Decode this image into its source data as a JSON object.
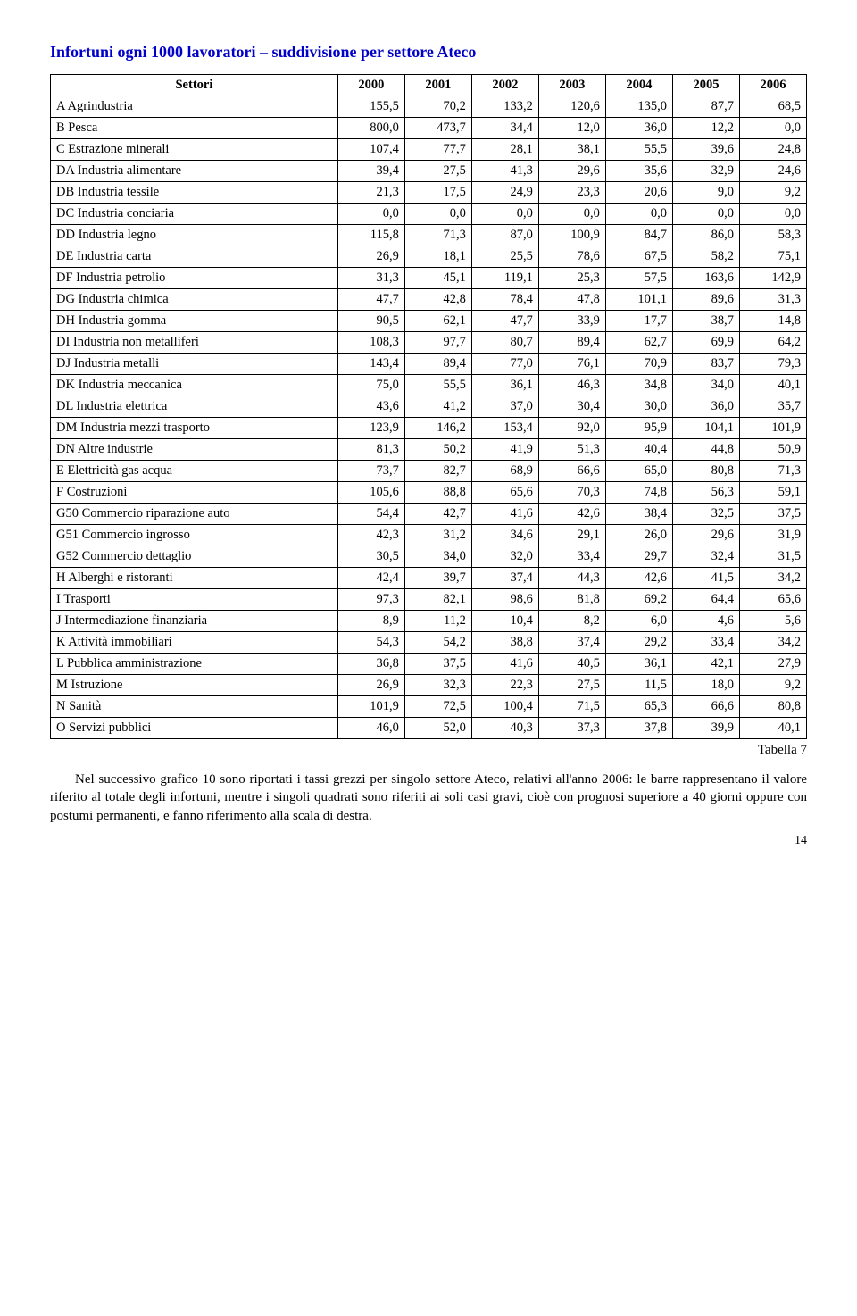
{
  "title": "Infortuni ogni 1000 lavoratori – suddivisione per settore Ateco",
  "title_color": "#0000c8",
  "columns": [
    "Settori",
    "2000",
    "2001",
    "2002",
    "2003",
    "2004",
    "2005",
    "2006"
  ],
  "rows": [
    [
      "A Agrindustria",
      "155,5",
      "70,2",
      "133,2",
      "120,6",
      "135,0",
      "87,7",
      "68,5"
    ],
    [
      "B Pesca",
      "800,0",
      "473,7",
      "34,4",
      "12,0",
      "36,0",
      "12,2",
      "0,0"
    ],
    [
      "C Estrazione minerali",
      "107,4",
      "77,7",
      "28,1",
      "38,1",
      "55,5",
      "39,6",
      "24,8"
    ],
    [
      "DA Industria alimentare",
      "39,4",
      "27,5",
      "41,3",
      "29,6",
      "35,6",
      "32,9",
      "24,6"
    ],
    [
      "DB Industria tessile",
      "21,3",
      "17,5",
      "24,9",
      "23,3",
      "20,6",
      "9,0",
      "9,2"
    ],
    [
      "DC Industria conciaria",
      "0,0",
      "0,0",
      "0,0",
      "0,0",
      "0,0",
      "0,0",
      "0,0"
    ],
    [
      "DD Industria legno",
      "115,8",
      "71,3",
      "87,0",
      "100,9",
      "84,7",
      "86,0",
      "58,3"
    ],
    [
      "DE Industria carta",
      "26,9",
      "18,1",
      "25,5",
      "78,6",
      "67,5",
      "58,2",
      "75,1"
    ],
    [
      "DF Industria petrolio",
      "31,3",
      "45,1",
      "119,1",
      "25,3",
      "57,5",
      "163,6",
      "142,9"
    ],
    [
      "DG Industria chimica",
      "47,7",
      "42,8",
      "78,4",
      "47,8",
      "101,1",
      "89,6",
      "31,3"
    ],
    [
      "DH Industria gomma",
      "90,5",
      "62,1",
      "47,7",
      "33,9",
      "17,7",
      "38,7",
      "14,8"
    ],
    [
      "DI Industria non metalliferi",
      "108,3",
      "97,7",
      "80,7",
      "89,4",
      "62,7",
      "69,9",
      "64,2"
    ],
    [
      "DJ Industria metalli",
      "143,4",
      "89,4",
      "77,0",
      "76,1",
      "70,9",
      "83,7",
      "79,3"
    ],
    [
      "DK Industria meccanica",
      "75,0",
      "55,5",
      "36,1",
      "46,3",
      "34,8",
      "34,0",
      "40,1"
    ],
    [
      "DL Industria elettrica",
      "43,6",
      "41,2",
      "37,0",
      "30,4",
      "30,0",
      "36,0",
      "35,7"
    ],
    [
      "DM Industria mezzi trasporto",
      "123,9",
      "146,2",
      "153,4",
      "92,0",
      "95,9",
      "104,1",
      "101,9"
    ],
    [
      "DN Altre industrie",
      "81,3",
      "50,2",
      "41,9",
      "51,3",
      "40,4",
      "44,8",
      "50,9"
    ],
    [
      "E Elettricità gas acqua",
      "73,7",
      "82,7",
      "68,9",
      "66,6",
      "65,0",
      "80,8",
      "71,3"
    ],
    [
      "F Costruzioni",
      "105,6",
      "88,8",
      "65,6",
      "70,3",
      "74,8",
      "56,3",
      "59,1"
    ],
    [
      "G50 Commercio riparazione auto",
      "54,4",
      "42,7",
      "41,6",
      "42,6",
      "38,4",
      "32,5",
      "37,5"
    ],
    [
      "G51 Commercio ingrosso",
      "42,3",
      "31,2",
      "34,6",
      "29,1",
      "26,0",
      "29,6",
      "31,9"
    ],
    [
      "G52 Commercio dettaglio",
      "30,5",
      "34,0",
      "32,0",
      "33,4",
      "29,7",
      "32,4",
      "31,5"
    ],
    [
      "H Alberghi e ristoranti",
      "42,4",
      "39,7",
      "37,4",
      "44,3",
      "42,6",
      "41,5",
      "34,2"
    ],
    [
      "I Trasporti",
      "97,3",
      "82,1",
      "98,6",
      "81,8",
      "69,2",
      "64,4",
      "65,6"
    ],
    [
      "J Intermediazione finanziaria",
      "8,9",
      "11,2",
      "10,4",
      "8,2",
      "6,0",
      "4,6",
      "5,6"
    ],
    [
      "K Attività immobiliari",
      "54,3",
      "54,2",
      "38,8",
      "37,4",
      "29,2",
      "33,4",
      "34,2"
    ],
    [
      "L Pubblica amministrazione",
      "36,8",
      "37,5",
      "41,6",
      "40,5",
      "36,1",
      "42,1",
      "27,9"
    ],
    [
      "M Istruzione",
      "26,9",
      "32,3",
      "22,3",
      "27,5",
      "11,5",
      "18,0",
      "9,2"
    ],
    [
      "N Sanità",
      "101,9",
      "72,5",
      "100,4",
      "71,5",
      "65,3",
      "66,6",
      "80,8"
    ],
    [
      "O Servizi pubblici",
      "46,0",
      "52,0",
      "40,3",
      "37,3",
      "37,8",
      "39,9",
      "40,1"
    ]
  ],
  "caption": "Tabella 7",
  "paragraph": "Nel successivo grafico 10 sono riportati i tassi grezzi per singolo settore Ateco, relativi all'anno 2006: le barre rappresentano il valore riferito al totale degli infortuni, mentre i singoli quadrati sono riferiti ai soli casi gravi, cioè con prognosi superiore a 40 giorni oppure con postumi permanenti, e fanno riferimento alla scala di destra.",
  "page_number": "14",
  "table_style": {
    "border_color": "#000000",
    "header_fontweight": "bold",
    "cell_fontsize": 14.5,
    "num_align": "right",
    "sector_align": "left"
  },
  "body_fontsize": 15
}
